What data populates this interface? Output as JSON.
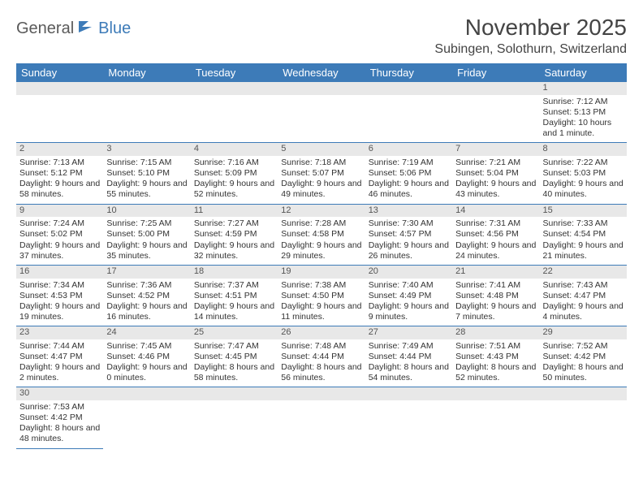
{
  "logo": {
    "text1": "General",
    "text2": "Blue"
  },
  "title": "November 2025",
  "location": "Subingen, Solothurn, Switzerland",
  "colors": {
    "header_bg": "#3d7bb8",
    "header_fg": "#ffffff",
    "daynum_bg": "#e8e8e8",
    "rule": "#3d7bb8"
  },
  "day_headers": [
    "Sunday",
    "Monday",
    "Tuesday",
    "Wednesday",
    "Thursday",
    "Friday",
    "Saturday"
  ],
  "weeks": [
    [
      null,
      null,
      null,
      null,
      null,
      null,
      {
        "n": "1",
        "sr": "Sunrise: 7:12 AM",
        "ss": "Sunset: 5:13 PM",
        "dl": "Daylight: 10 hours and 1 minute."
      }
    ],
    [
      {
        "n": "2",
        "sr": "Sunrise: 7:13 AM",
        "ss": "Sunset: 5:12 PM",
        "dl": "Daylight: 9 hours and 58 minutes."
      },
      {
        "n": "3",
        "sr": "Sunrise: 7:15 AM",
        "ss": "Sunset: 5:10 PM",
        "dl": "Daylight: 9 hours and 55 minutes."
      },
      {
        "n": "4",
        "sr": "Sunrise: 7:16 AM",
        "ss": "Sunset: 5:09 PM",
        "dl": "Daylight: 9 hours and 52 minutes."
      },
      {
        "n": "5",
        "sr": "Sunrise: 7:18 AM",
        "ss": "Sunset: 5:07 PM",
        "dl": "Daylight: 9 hours and 49 minutes."
      },
      {
        "n": "6",
        "sr": "Sunrise: 7:19 AM",
        "ss": "Sunset: 5:06 PM",
        "dl": "Daylight: 9 hours and 46 minutes."
      },
      {
        "n": "7",
        "sr": "Sunrise: 7:21 AM",
        "ss": "Sunset: 5:04 PM",
        "dl": "Daylight: 9 hours and 43 minutes."
      },
      {
        "n": "8",
        "sr": "Sunrise: 7:22 AM",
        "ss": "Sunset: 5:03 PM",
        "dl": "Daylight: 9 hours and 40 minutes."
      }
    ],
    [
      {
        "n": "9",
        "sr": "Sunrise: 7:24 AM",
        "ss": "Sunset: 5:02 PM",
        "dl": "Daylight: 9 hours and 37 minutes."
      },
      {
        "n": "10",
        "sr": "Sunrise: 7:25 AM",
        "ss": "Sunset: 5:00 PM",
        "dl": "Daylight: 9 hours and 35 minutes."
      },
      {
        "n": "11",
        "sr": "Sunrise: 7:27 AM",
        "ss": "Sunset: 4:59 PM",
        "dl": "Daylight: 9 hours and 32 minutes."
      },
      {
        "n": "12",
        "sr": "Sunrise: 7:28 AM",
        "ss": "Sunset: 4:58 PM",
        "dl": "Daylight: 9 hours and 29 minutes."
      },
      {
        "n": "13",
        "sr": "Sunrise: 7:30 AM",
        "ss": "Sunset: 4:57 PM",
        "dl": "Daylight: 9 hours and 26 minutes."
      },
      {
        "n": "14",
        "sr": "Sunrise: 7:31 AM",
        "ss": "Sunset: 4:56 PM",
        "dl": "Daylight: 9 hours and 24 minutes."
      },
      {
        "n": "15",
        "sr": "Sunrise: 7:33 AM",
        "ss": "Sunset: 4:54 PM",
        "dl": "Daylight: 9 hours and 21 minutes."
      }
    ],
    [
      {
        "n": "16",
        "sr": "Sunrise: 7:34 AM",
        "ss": "Sunset: 4:53 PM",
        "dl": "Daylight: 9 hours and 19 minutes."
      },
      {
        "n": "17",
        "sr": "Sunrise: 7:36 AM",
        "ss": "Sunset: 4:52 PM",
        "dl": "Daylight: 9 hours and 16 minutes."
      },
      {
        "n": "18",
        "sr": "Sunrise: 7:37 AM",
        "ss": "Sunset: 4:51 PM",
        "dl": "Daylight: 9 hours and 14 minutes."
      },
      {
        "n": "19",
        "sr": "Sunrise: 7:38 AM",
        "ss": "Sunset: 4:50 PM",
        "dl": "Daylight: 9 hours and 11 minutes."
      },
      {
        "n": "20",
        "sr": "Sunrise: 7:40 AM",
        "ss": "Sunset: 4:49 PM",
        "dl": "Daylight: 9 hours and 9 minutes."
      },
      {
        "n": "21",
        "sr": "Sunrise: 7:41 AM",
        "ss": "Sunset: 4:48 PM",
        "dl": "Daylight: 9 hours and 7 minutes."
      },
      {
        "n": "22",
        "sr": "Sunrise: 7:43 AM",
        "ss": "Sunset: 4:47 PM",
        "dl": "Daylight: 9 hours and 4 minutes."
      }
    ],
    [
      {
        "n": "23",
        "sr": "Sunrise: 7:44 AM",
        "ss": "Sunset: 4:47 PM",
        "dl": "Daylight: 9 hours and 2 minutes."
      },
      {
        "n": "24",
        "sr": "Sunrise: 7:45 AM",
        "ss": "Sunset: 4:46 PM",
        "dl": "Daylight: 9 hours and 0 minutes."
      },
      {
        "n": "25",
        "sr": "Sunrise: 7:47 AM",
        "ss": "Sunset: 4:45 PM",
        "dl": "Daylight: 8 hours and 58 minutes."
      },
      {
        "n": "26",
        "sr": "Sunrise: 7:48 AM",
        "ss": "Sunset: 4:44 PM",
        "dl": "Daylight: 8 hours and 56 minutes."
      },
      {
        "n": "27",
        "sr": "Sunrise: 7:49 AM",
        "ss": "Sunset: 4:44 PM",
        "dl": "Daylight: 8 hours and 54 minutes."
      },
      {
        "n": "28",
        "sr": "Sunrise: 7:51 AM",
        "ss": "Sunset: 4:43 PM",
        "dl": "Daylight: 8 hours and 52 minutes."
      },
      {
        "n": "29",
        "sr": "Sunrise: 7:52 AM",
        "ss": "Sunset: 4:42 PM",
        "dl": "Daylight: 8 hours and 50 minutes."
      }
    ],
    [
      {
        "n": "30",
        "sr": "Sunrise: 7:53 AM",
        "ss": "Sunset: 4:42 PM",
        "dl": "Daylight: 8 hours and 48 minutes."
      },
      null,
      null,
      null,
      null,
      null,
      null
    ]
  ]
}
